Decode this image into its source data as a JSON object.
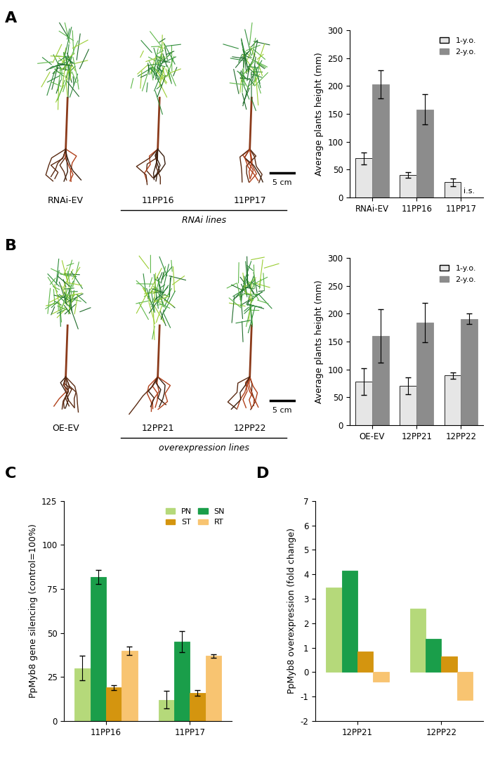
{
  "panel_labels": [
    "A",
    "B",
    "C",
    "D"
  ],
  "photos": [
    {
      "labels": [
        "RNAi-EV",
        "11PP16",
        "11PP17"
      ],
      "group_label": "RNAi lines",
      "scale": "5 cm"
    },
    {
      "labels": [
        "OE-EV",
        "12PP21",
        "12PP22"
      ],
      "group_label": "overexpression lines",
      "scale": "5 cm"
    }
  ],
  "chart_data": [
    {
      "type": "bar",
      "ylabel": "Average plants height (mm)",
      "categories": [
        "RNAi-EV",
        "11PP16",
        "11PP17"
      ],
      "series": [
        {
          "name": "1-y.o.",
          "color": "#e6e6e6",
          "values": [
            70,
            40,
            27
          ],
          "errors": [
            11,
            5,
            7
          ]
        },
        {
          "name": "2-y.o.",
          "color": "#8c8c8c",
          "values": [
            203,
            158,
            null
          ],
          "errors": [
            25,
            27,
            null
          ]
        }
      ],
      "annotations": [
        {
          "text": "i.s.",
          "category": "11PP17",
          "series": "2-y.o."
        }
      ],
      "ylim": [
        0,
        300
      ],
      "yticks": [
        0,
        50,
        100,
        150,
        200,
        250,
        300
      ],
      "legend": "upper right"
    },
    {
      "type": "bar",
      "ylabel": "Average plants height (mm)",
      "categories": [
        "OE-EV",
        "12PP21",
        "12PP22"
      ],
      "series": [
        {
          "name": "1-y.o.",
          "color": "#e6e6e6",
          "values": [
            78,
            70,
            89
          ],
          "errors": [
            24,
            15,
            6
          ]
        },
        {
          "name": "2-y.o.",
          "color": "#8c8c8c",
          "values": [
            160,
            184,
            191
          ],
          "errors": [
            48,
            35,
            10
          ]
        }
      ],
      "ylim": [
        0,
        300
      ],
      "yticks": [
        0,
        50,
        100,
        150,
        200,
        250,
        300
      ],
      "legend": "upper right"
    },
    {
      "type": "bar",
      "ylabel": "PpMyb8 gene silencing (control=100%)",
      "categories": [
        "11PP16",
        "11PP17"
      ],
      "series": [
        {
          "name": "PN",
          "color": "#b5d97a",
          "values": [
            30,
            12
          ],
          "errors": [
            7,
            5
          ]
        },
        {
          "name": "SN",
          "color": "#1a9e4a",
          "values": [
            82,
            45
          ],
          "errors": [
            4,
            6
          ]
        },
        {
          "name": "ST",
          "color": "#d4950f",
          "values": [
            19,
            16
          ],
          "errors": [
            1.5,
            1.5
          ]
        },
        {
          "name": "RT",
          "color": "#f8c471",
          "values": [
            40,
            37
          ],
          "errors": [
            2.5,
            1
          ]
        }
      ],
      "ylim": [
        0,
        125
      ],
      "yticks": [
        0,
        25,
        50,
        75,
        100,
        125
      ],
      "legend": "upper right"
    },
    {
      "type": "bar",
      "ylabel": "PpMyb8 overexpression (fold change)",
      "categories": [
        "12PP21",
        "12PP22"
      ],
      "series": [
        {
          "name": "PN",
          "color": "#b5d97a",
          "values": [
            3.45,
            2.6
          ]
        },
        {
          "name": "SN",
          "color": "#1a9e4a",
          "values": [
            4.15,
            1.35
          ]
        },
        {
          "name": "ST",
          "color": "#d4950f",
          "values": [
            0.85,
            0.65
          ]
        },
        {
          "name": "RT",
          "color": "#f8c471",
          "values": [
            -0.4,
            -1.15
          ]
        }
      ],
      "ylim": [
        -2,
        7
      ],
      "yticks": [
        -2,
        -1,
        0,
        1,
        2,
        3,
        4,
        5,
        6,
        7
      ]
    }
  ]
}
